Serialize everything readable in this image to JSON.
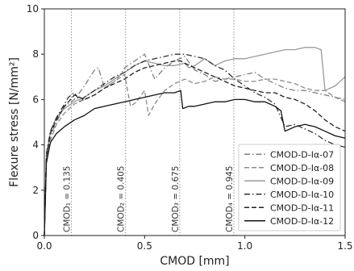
{
  "chart_data": {
    "type": "line",
    "xlabel": "CMOD [mm]",
    "ylabel": "Flexure stress [N/mm²]",
    "xlim": [
      0,
      1.5
    ],
    "ylim": [
      0,
      10
    ],
    "xticks": [
      0.0,
      0.5,
      1.0,
      1.5
    ],
    "xtick_labels": [
      "0.0",
      "0.5",
      "1.0",
      "1.5"
    ],
    "yticks": [
      0,
      2,
      4,
      6,
      8,
      10
    ],
    "ytick_labels": [
      "0",
      "2",
      "4",
      "6",
      "8",
      "10"
    ],
    "grid": false,
    "legend_position": "bottom-right",
    "vlines": [
      {
        "x": 0.135,
        "label": "CMOD₁ = 0.135"
      },
      {
        "x": 0.405,
        "label": "CMOD₂ = 0.405"
      },
      {
        "x": 0.675,
        "label": "CMOD₃ = 0.675"
      },
      {
        "x": 0.945,
        "label": "CMOD₄ = 0.945"
      }
    ],
    "series": [
      {
        "name": "CMOD-D-Iα-07",
        "color": "#7f7f7f",
        "dash": "dashdot",
        "x": [
          0,
          0.01,
          0.03,
          0.06,
          0.1,
          0.15,
          0.2,
          0.25,
          0.27,
          0.3,
          0.35,
          0.38,
          0.4,
          0.45,
          0.5,
          0.55,
          0.6,
          0.65,
          0.7,
          0.75,
          0.8,
          0.85,
          0.9,
          0.95,
          1.0,
          1.05,
          1.1,
          1.15,
          1.2,
          1.25,
          1.3,
          1.35,
          1.4,
          1.45,
          1.5
        ],
        "y": [
          0,
          3.3,
          4.4,
          5.0,
          5.7,
          6.0,
          6.6,
          7.3,
          7.4,
          6.5,
          6.8,
          7.1,
          7.4,
          7.7,
          8.0,
          6.9,
          7.4,
          7.7,
          7.9,
          7.3,
          7.1,
          6.8,
          6.9,
          7.0,
          7.1,
          7.2,
          6.9,
          6.7,
          6.5,
          6.4,
          6.4,
          6.3,
          6.2,
          6.1,
          6.0
        ]
      },
      {
        "name": "CMOD-D-Iα-08",
        "color": "#8c8c8c",
        "dash": "dashed",
        "x": [
          0,
          0.01,
          0.03,
          0.06,
          0.1,
          0.15,
          0.2,
          0.25,
          0.3,
          0.35,
          0.4,
          0.43,
          0.46,
          0.5,
          0.52,
          0.55,
          0.6,
          0.65,
          0.7,
          0.75,
          0.8,
          0.85,
          0.9,
          0.95,
          1.0,
          1.05,
          1.1,
          1.15,
          1.2,
          1.25,
          1.3,
          1.35,
          1.4,
          1.45,
          1.5
        ],
        "y": [
          0,
          3.2,
          4.2,
          4.9,
          5.4,
          5.8,
          6.0,
          6.2,
          6.5,
          6.8,
          7.1,
          5.7,
          5.9,
          6.4,
          5.3,
          5.8,
          6.4,
          6.7,
          6.9,
          6.7,
          6.8,
          7.0,
          6.9,
          6.9,
          6.8,
          6.8,
          6.9,
          6.9,
          6.8,
          6.7,
          6.5,
          6.4,
          6.4,
          6.1,
          5.9
        ]
      },
      {
        "name": "CMOD-D-Iα-09",
        "color": "#9a9a9a",
        "dash": "solid",
        "x": [
          0,
          0.01,
          0.03,
          0.06,
          0.1,
          0.15,
          0.2,
          0.25,
          0.3,
          0.35,
          0.4,
          0.45,
          0.5,
          0.55,
          0.6,
          0.65,
          0.7,
          0.72,
          0.75,
          0.8,
          0.85,
          0.9,
          0.95,
          1.0,
          1.05,
          1.1,
          1.15,
          1.2,
          1.25,
          1.3,
          1.35,
          1.38,
          1.4,
          1.45,
          1.5
        ],
        "y": [
          0,
          3.4,
          4.6,
          5.2,
          5.6,
          5.9,
          6.1,
          6.4,
          6.6,
          6.9,
          7.2,
          7.5,
          7.7,
          7.6,
          7.5,
          7.5,
          7.6,
          7.4,
          7.5,
          7.8,
          7.5,
          7.7,
          7.8,
          7.8,
          7.9,
          8.0,
          8.1,
          8.2,
          8.2,
          8.3,
          8.3,
          8.2,
          6.4,
          6.6,
          7.0
        ]
      },
      {
        "name": "CMOD-D-Iα-10",
        "color": "#333333",
        "dash": "dashdot",
        "x": [
          0,
          0.01,
          0.03,
          0.06,
          0.1,
          0.12,
          0.15,
          0.18,
          0.2,
          0.25,
          0.3,
          0.35,
          0.4,
          0.45,
          0.5,
          0.55,
          0.6,
          0.65,
          0.7,
          0.75,
          0.8,
          0.85,
          0.9,
          0.95,
          1.0,
          1.05,
          1.1,
          1.15,
          1.2,
          1.25,
          1.3,
          1.35,
          1.4,
          1.45,
          1.5
        ],
        "y": [
          0,
          3.6,
          4.6,
          5.2,
          5.8,
          6.1,
          6.3,
          5.9,
          6.1,
          6.4,
          6.7,
          7.0,
          7.2,
          7.5,
          7.7,
          7.8,
          7.9,
          8.0,
          8.0,
          7.9,
          7.8,
          7.5,
          7.3,
          6.9,
          6.6,
          6.3,
          6.1,
          5.8,
          4.8,
          4.9,
          4.7,
          4.5,
          4.2,
          4.0,
          3.9
        ]
      },
      {
        "name": "CMOD-D-Iα-11",
        "color": "#222222",
        "dash": "dashed",
        "x": [
          0,
          0.01,
          0.03,
          0.06,
          0.1,
          0.13,
          0.15,
          0.2,
          0.25,
          0.3,
          0.35,
          0.4,
          0.45,
          0.5,
          0.55,
          0.6,
          0.65,
          0.68,
          0.7,
          0.75,
          0.8,
          0.85,
          0.9,
          0.95,
          1.0,
          1.05,
          1.1,
          1.15,
          1.2,
          1.25,
          1.3,
          1.35,
          1.4,
          1.45,
          1.5
        ],
        "y": [
          0,
          3.5,
          4.5,
          5.1,
          5.7,
          6.0,
          6.2,
          6.0,
          6.2,
          6.5,
          6.7,
          6.9,
          7.2,
          7.4,
          7.5,
          7.6,
          7.7,
          7.7,
          7.6,
          7.4,
          7.2,
          7.0,
          6.8,
          6.6,
          6.5,
          6.4,
          6.3,
          6.3,
          6.1,
          6.0,
          5.8,
          5.5,
          5.1,
          4.8,
          4.6
        ]
      },
      {
        "name": "CMOD-D-Iα-12",
        "color": "#111111",
        "dash": "solid",
        "x": [
          0,
          0.01,
          0.03,
          0.06,
          0.1,
          0.15,
          0.2,
          0.25,
          0.3,
          0.35,
          0.4,
          0.45,
          0.5,
          0.55,
          0.6,
          0.65,
          0.68,
          0.69,
          0.72,
          0.75,
          0.8,
          0.85,
          0.9,
          0.95,
          1.0,
          1.05,
          1.1,
          1.15,
          1.18,
          1.2,
          1.25,
          1.3,
          1.35,
          1.4,
          1.45,
          1.5
        ],
        "y": [
          0,
          3.2,
          4.1,
          4.5,
          4.8,
          5.1,
          5.3,
          5.6,
          5.7,
          5.8,
          5.9,
          6.0,
          6.1,
          6.2,
          6.3,
          6.3,
          6.4,
          5.6,
          5.7,
          5.7,
          5.8,
          5.9,
          5.9,
          6.0,
          6.0,
          5.9,
          5.9,
          5.7,
          5.5,
          4.6,
          4.8,
          4.9,
          4.8,
          4.6,
          4.4,
          4.3
        ]
      }
    ]
  }
}
